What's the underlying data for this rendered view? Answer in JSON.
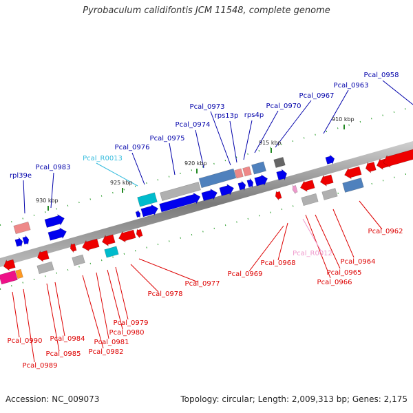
{
  "title": "Pyrobaculum calidifontis JCM 11548, complete genome",
  "footer": {
    "accession": "Accession: NC_009073",
    "summary": "Topology: circular; Length: 2,009,313 bp; Genes: 2,175"
  },
  "colors": {
    "forward_gene": "#0000ee",
    "reverse_gene": "#ee0000",
    "rna": "#00bbcc",
    "pseudo_gray": "#b0b0b0",
    "rrna_pink": "#ee8888",
    "steelblue": "#4f81bd",
    "label_blue": "#0000aa",
    "label_red": "#dd0000",
    "label_cyan": "#33bbdd",
    "label_pink": "#ee99cc",
    "tick_green": "#228822"
  },
  "scale_ticks": [
    "910 kbp",
    "915 kbp",
    "920 kbp",
    "925 kbp",
    "930 kbp"
  ],
  "gene_labels_top": [
    "Pcal_0958",
    "Pcal_0963",
    "Pcal_0967",
    "Pcal_0970",
    "rps4p",
    "rps13p",
    "Pcal_0973",
    "Pcal_0974",
    "Pcal_0975",
    "Pcal_0976",
    "Pcal_R0013",
    "Pcal_0983",
    "rpl39e"
  ],
  "gene_labels_bottom": [
    "Pcal_0962",
    "Pcal_0964",
    "Pcal_0965",
    "Pcal_0966",
    "Pcal_R0012",
    "Pcal_0968",
    "Pcal_0969",
    "Pcal_0977",
    "Pcal_0978",
    "Pcal_0979",
    "Pcal_0980",
    "Pcal_0981",
    "Pcal_0982",
    "Pcal_0984",
    "Pcal_0985",
    "Pcal_0989",
    "Pcal_0990"
  ]
}
